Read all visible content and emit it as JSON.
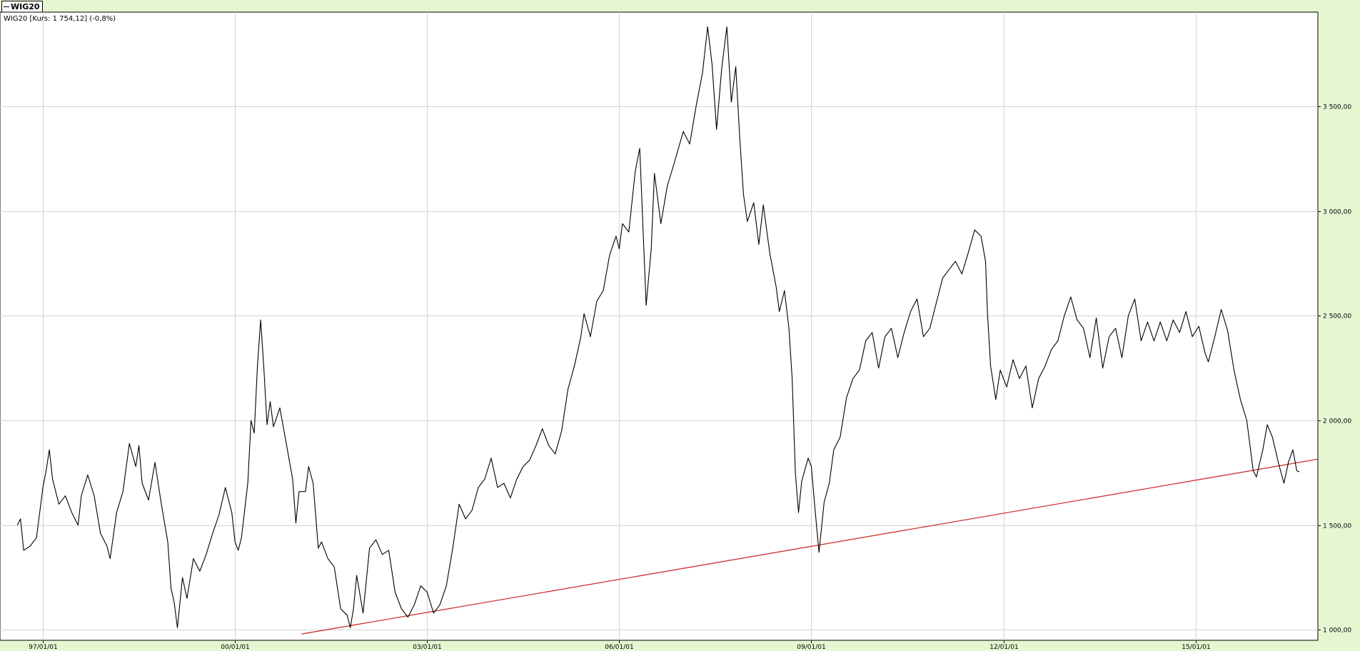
{
  "tab": {
    "label": "WIG20"
  },
  "info_label": "WIG20 [Kurs: 1 754,12] (-0,8%)",
  "colors": {
    "background": "#e6f6d0",
    "plot_background": "#ffffff",
    "grid": "#d3d3d3",
    "price_line": "#000000",
    "trend_line": "#cc3333"
  },
  "chart_data": {
    "type": "line",
    "title": "",
    "xlabel": "",
    "ylabel": "",
    "ylim": [
      950,
      3950
    ],
    "xlim": [
      1996.33,
      2016.91
    ],
    "grid": true,
    "y_axis_position": "right",
    "x_ticks": [
      {
        "value": 1997.0,
        "label": "97/01/01"
      },
      {
        "value": 2000.0,
        "label": "00/01/01"
      },
      {
        "value": 2003.0,
        "label": "03/01/01"
      },
      {
        "value": 2006.0,
        "label": "06/01/01"
      },
      {
        "value": 2009.0,
        "label": "09/01/01"
      },
      {
        "value": 2012.0,
        "label": "12/01/01"
      },
      {
        "value": 2015.0,
        "label": "15/01/01"
      }
    ],
    "y_ticks": [
      {
        "value": 1000,
        "label": "1 000,00"
      },
      {
        "value": 1500,
        "label": "1 500,00"
      },
      {
        "value": 2000,
        "label": "2 000,00"
      },
      {
        "value": 2500,
        "label": "2 500,00"
      },
      {
        "value": 3000,
        "label": "3 000,00"
      },
      {
        "value": 3500,
        "label": "3 500,00"
      }
    ],
    "series": [
      {
        "role": "price",
        "points": [
          [
            1996.6,
            1500
          ],
          [
            1996.65,
            1530
          ],
          [
            1996.7,
            1380
          ],
          [
            1996.75,
            1390
          ],
          [
            1996.8,
            1400
          ],
          [
            1996.9,
            1440
          ],
          [
            1997.0,
            1680
          ],
          [
            1997.05,
            1760
          ],
          [
            1997.1,
            1860
          ],
          [
            1997.15,
            1720
          ],
          [
            1997.25,
            1600
          ],
          [
            1997.35,
            1640
          ],
          [
            1997.45,
            1560
          ],
          [
            1997.55,
            1500
          ],
          [
            1997.6,
            1640
          ],
          [
            1997.7,
            1740
          ],
          [
            1997.8,
            1640
          ],
          [
            1997.9,
            1460
          ],
          [
            1998.0,
            1400
          ],
          [
            1998.05,
            1340
          ],
          [
            1998.15,
            1560
          ],
          [
            1998.25,
            1660
          ],
          [
            1998.35,
            1890
          ],
          [
            1998.45,
            1780
          ],
          [
            1998.5,
            1880
          ],
          [
            1998.55,
            1700
          ],
          [
            1998.65,
            1620
          ],
          [
            1998.75,
            1800
          ],
          [
            1998.85,
            1600
          ],
          [
            1998.95,
            1420
          ],
          [
            1999.0,
            1200
          ],
          [
            1999.05,
            1130
          ],
          [
            1999.1,
            1010
          ],
          [
            1999.18,
            1250
          ],
          [
            1999.25,
            1150
          ],
          [
            1999.35,
            1340
          ],
          [
            1999.45,
            1280
          ],
          [
            1999.55,
            1360
          ],
          [
            1999.65,
            1460
          ],
          [
            1999.75,
            1550
          ],
          [
            1999.85,
            1680
          ],
          [
            1999.95,
            1560
          ],
          [
            2000.0,
            1420
          ],
          [
            2000.05,
            1380
          ],
          [
            2000.1,
            1440
          ],
          [
            2000.2,
            1700
          ],
          [
            2000.25,
            2000
          ],
          [
            2000.3,
            1940
          ],
          [
            2000.35,
            2260
          ],
          [
            2000.4,
            2480
          ],
          [
            2000.45,
            2250
          ],
          [
            2000.5,
            1980
          ],
          [
            2000.55,
            2090
          ],
          [
            2000.6,
            1970
          ],
          [
            2000.7,
            2060
          ],
          [
            2000.8,
            1890
          ],
          [
            2000.9,
            1720
          ],
          [
            2000.95,
            1510
          ],
          [
            2001.0,
            1660
          ],
          [
            2001.1,
            1660
          ],
          [
            2001.15,
            1780
          ],
          [
            2001.22,
            1700
          ],
          [
            2001.3,
            1390
          ],
          [
            2001.35,
            1420
          ],
          [
            2001.45,
            1340
          ],
          [
            2001.55,
            1300
          ],
          [
            2001.65,
            1100
          ],
          [
            2001.75,
            1070
          ],
          [
            2001.8,
            1010
          ],
          [
            2001.85,
            1100
          ],
          [
            2001.9,
            1260
          ],
          [
            2002.0,
            1080
          ],
          [
            2002.1,
            1390
          ],
          [
            2002.2,
            1430
          ],
          [
            2002.3,
            1360
          ],
          [
            2002.4,
            1380
          ],
          [
            2002.5,
            1180
          ],
          [
            2002.6,
            1100
          ],
          [
            2002.7,
            1060
          ],
          [
            2002.8,
            1120
          ],
          [
            2002.9,
            1210
          ],
          [
            2003.0,
            1180
          ],
          [
            2003.1,
            1080
          ],
          [
            2003.2,
            1120
          ],
          [
            2003.3,
            1210
          ],
          [
            2003.4,
            1390
          ],
          [
            2003.5,
            1600
          ],
          [
            2003.6,
            1530
          ],
          [
            2003.7,
            1570
          ],
          [
            2003.8,
            1680
          ],
          [
            2003.9,
            1720
          ],
          [
            2004.0,
            1820
          ],
          [
            2004.1,
            1680
          ],
          [
            2004.2,
            1700
          ],
          [
            2004.3,
            1630
          ],
          [
            2004.4,
            1720
          ],
          [
            2004.5,
            1780
          ],
          [
            2004.6,
            1810
          ],
          [
            2004.7,
            1880
          ],
          [
            2004.8,
            1960
          ],
          [
            2004.9,
            1880
          ],
          [
            2005.0,
            1840
          ],
          [
            2005.1,
            1950
          ],
          [
            2005.2,
            2150
          ],
          [
            2005.3,
            2260
          ],
          [
            2005.4,
            2400
          ],
          [
            2005.45,
            2510
          ],
          [
            2005.55,
            2400
          ],
          [
            2005.65,
            2570
          ],
          [
            2005.75,
            2620
          ],
          [
            2005.85,
            2790
          ],
          [
            2005.95,
            2880
          ],
          [
            2006.0,
            2820
          ],
          [
            2006.05,
            2940
          ],
          [
            2006.15,
            2900
          ],
          [
            2006.25,
            3190
          ],
          [
            2006.32,
            3300
          ],
          [
            2006.4,
            2700
          ],
          [
            2006.42,
            2550
          ],
          [
            2006.5,
            2820
          ],
          [
            2006.55,
            3180
          ],
          [
            2006.65,
            2940
          ],
          [
            2006.75,
            3120
          ],
          [
            2006.85,
            3220
          ],
          [
            2007.0,
            3380
          ],
          [
            2007.1,
            3320
          ],
          [
            2007.2,
            3500
          ],
          [
            2007.3,
            3660
          ],
          [
            2007.38,
            3880
          ],
          [
            2007.45,
            3700
          ],
          [
            2007.52,
            3390
          ],
          [
            2007.6,
            3680
          ],
          [
            2007.68,
            3880
          ],
          [
            2007.75,
            3520
          ],
          [
            2007.82,
            3690
          ],
          [
            2007.88,
            3360
          ],
          [
            2007.94,
            3080
          ],
          [
            2008.0,
            2950
          ],
          [
            2008.1,
            3040
          ],
          [
            2008.18,
            2840
          ],
          [
            2008.25,
            3030
          ],
          [
            2008.35,
            2800
          ],
          [
            2008.45,
            2640
          ],
          [
            2008.5,
            2520
          ],
          [
            2008.58,
            2620
          ],
          [
            2008.65,
            2440
          ],
          [
            2008.7,
            2200
          ],
          [
            2008.75,
            1750
          ],
          [
            2008.8,
            1560
          ],
          [
            2008.85,
            1710
          ],
          [
            2008.95,
            1820
          ],
          [
            2009.0,
            1780
          ],
          [
            2009.05,
            1600
          ],
          [
            2009.12,
            1370
          ],
          [
            2009.2,
            1610
          ],
          [
            2009.28,
            1700
          ],
          [
            2009.35,
            1860
          ],
          [
            2009.45,
            1920
          ],
          [
            2009.55,
            2110
          ],
          [
            2009.65,
            2200
          ],
          [
            2009.75,
            2240
          ],
          [
            2009.85,
            2380
          ],
          [
            2009.95,
            2420
          ],
          [
            2010.05,
            2250
          ],
          [
            2010.15,
            2400
          ],
          [
            2010.25,
            2440
          ],
          [
            2010.35,
            2300
          ],
          [
            2010.45,
            2420
          ],
          [
            2010.55,
            2520
          ],
          [
            2010.65,
            2580
          ],
          [
            2010.75,
            2400
          ],
          [
            2010.85,
            2440
          ],
          [
            2010.95,
            2560
          ],
          [
            2011.05,
            2680
          ],
          [
            2011.15,
            2720
          ],
          [
            2011.25,
            2760
          ],
          [
            2011.35,
            2700
          ],
          [
            2011.45,
            2800
          ],
          [
            2011.55,
            2910
          ],
          [
            2011.65,
            2880
          ],
          [
            2011.72,
            2760
          ],
          [
            2011.75,
            2510
          ],
          [
            2011.8,
            2260
          ],
          [
            2011.88,
            2100
          ],
          [
            2011.95,
            2240
          ],
          [
            2012.05,
            2160
          ],
          [
            2012.15,
            2290
          ],
          [
            2012.25,
            2200
          ],
          [
            2012.35,
            2260
          ],
          [
            2012.45,
            2060
          ],
          [
            2012.55,
            2200
          ],
          [
            2012.65,
            2260
          ],
          [
            2012.75,
            2340
          ],
          [
            2012.85,
            2380
          ],
          [
            2012.95,
            2500
          ],
          [
            2013.05,
            2590
          ],
          [
            2013.15,
            2480
          ],
          [
            2013.25,
            2440
          ],
          [
            2013.35,
            2300
          ],
          [
            2013.45,
            2490
          ],
          [
            2013.55,
            2250
          ],
          [
            2013.65,
            2400
          ],
          [
            2013.75,
            2440
          ],
          [
            2013.85,
            2300
          ],
          [
            2013.95,
            2500
          ],
          [
            2014.05,
            2580
          ],
          [
            2014.15,
            2380
          ],
          [
            2014.25,
            2470
          ],
          [
            2014.35,
            2380
          ],
          [
            2014.45,
            2470
          ],
          [
            2014.55,
            2380
          ],
          [
            2014.65,
            2480
          ],
          [
            2014.75,
            2420
          ],
          [
            2014.85,
            2520
          ],
          [
            2014.95,
            2400
          ],
          [
            2015.05,
            2450
          ],
          [
            2015.15,
            2320
          ],
          [
            2015.2,
            2280
          ],
          [
            2015.3,
            2400
          ],
          [
            2015.4,
            2530
          ],
          [
            2015.5,
            2430
          ],
          [
            2015.6,
            2240
          ],
          [
            2015.7,
            2100
          ],
          [
            2015.8,
            2000
          ],
          [
            2015.85,
            1880
          ],
          [
            2015.9,
            1760
          ],
          [
            2015.95,
            1730
          ],
          [
            2016.05,
            1860
          ],
          [
            2016.12,
            1980
          ],
          [
            2016.2,
            1920
          ],
          [
            2016.3,
            1790
          ],
          [
            2016.38,
            1700
          ],
          [
            2016.45,
            1800
          ],
          [
            2016.52,
            1860
          ],
          [
            2016.58,
            1760
          ],
          [
            2016.62,
            1754.12
          ]
        ]
      },
      {
        "role": "trend",
        "points": [
          [
            2001.04,
            980
          ],
          [
            2016.91,
            1815
          ]
        ]
      }
    ]
  }
}
